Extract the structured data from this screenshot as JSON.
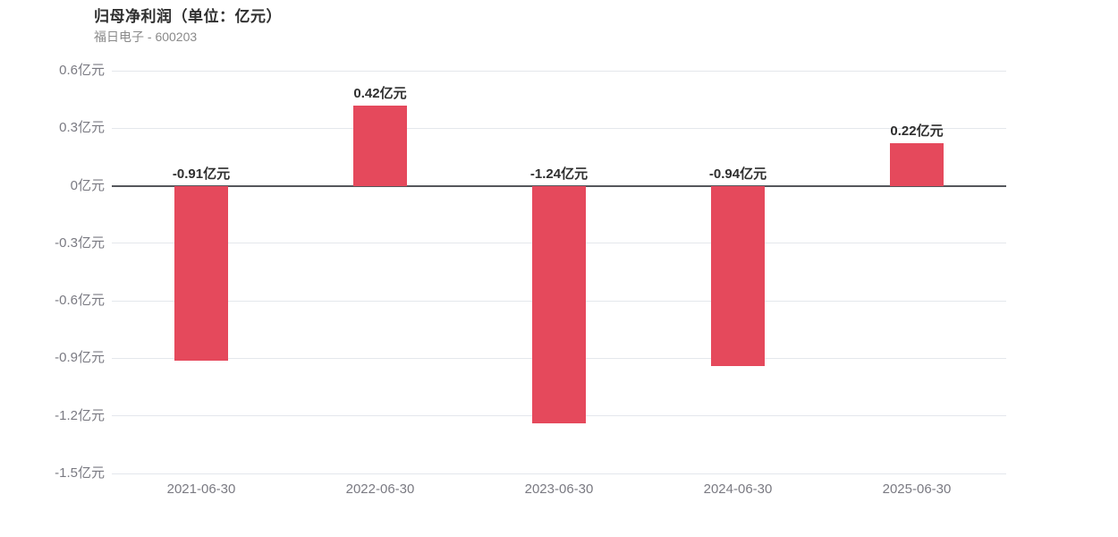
{
  "header": {
    "title": "归母净利润（单位：亿元）",
    "subtitle": "福日电子 - 600203"
  },
  "chart_data": {
    "type": "bar",
    "title": "归母净利润（单位：亿元）",
    "subtitle": "福日电子 - 600203",
    "unit": "亿元",
    "categories": [
      "2021-06-30",
      "2022-06-30",
      "2023-06-30",
      "2024-06-30",
      "2025-06-30"
    ],
    "values": [
      -0.91,
      0.42,
      -1.24,
      -0.94,
      0.22
    ],
    "value_labels": [
      "-0.91亿元",
      "0.42亿元",
      "-1.24亿元",
      "-0.94亿元",
      "0.22亿元"
    ],
    "ylim": [
      -1.5,
      0.6
    ],
    "yticks": [
      {
        "value": 0.6,
        "label": "0.6亿元"
      },
      {
        "value": 0.3,
        "label": "0.3亿元"
      },
      {
        "value": 0,
        "label": "0亿元"
      },
      {
        "value": -0.3,
        "label": "-0.3亿元"
      },
      {
        "value": -0.6,
        "label": "-0.6亿元"
      },
      {
        "value": -0.9,
        "label": "-0.9亿元"
      },
      {
        "value": -1.2,
        "label": "-1.2亿元"
      },
      {
        "value": -1.5,
        "label": "-1.5亿元"
      }
    ],
    "grid": true,
    "legend": "none",
    "colors": {
      "bar": "#e5495c",
      "zero_line": "#55575c",
      "grid_line": "#e4e7ec",
      "tick_label": "#7a7a82",
      "value_label": "#2f2f2f",
      "title": "#2f2f2f",
      "subtitle": "#8a8a8a"
    }
  }
}
